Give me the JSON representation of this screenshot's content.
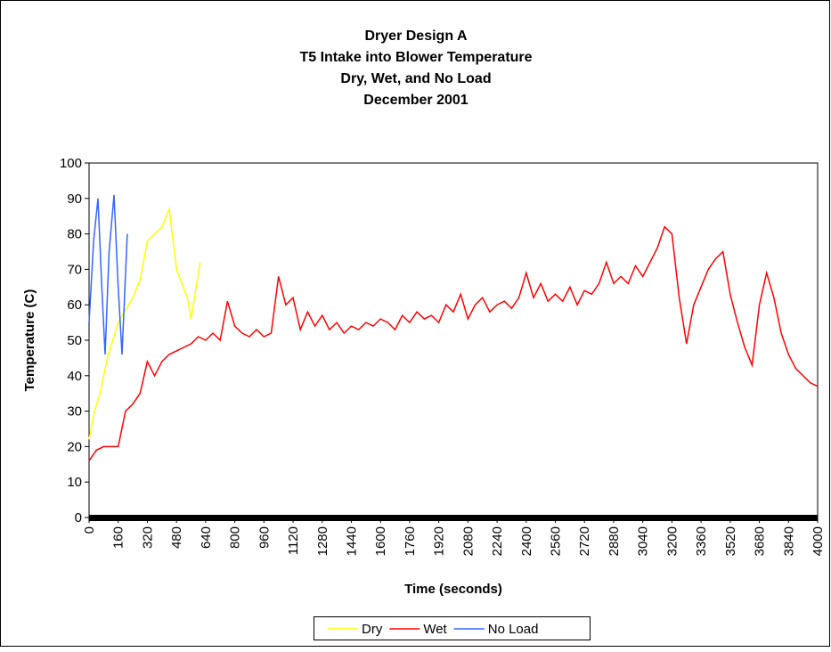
{
  "chart_data": {
    "type": "line",
    "title": [
      "Dryer Design A",
      "T5 Intake into Blower Temperature",
      "Dry, Wet, and No Load",
      "December 2001"
    ],
    "x_label": "Time (seconds)",
    "y_label": "Temperature (C)",
    "xlim": [
      0,
      4000
    ],
    "ylim": [
      0,
      100
    ],
    "xticks": [
      0,
      160,
      320,
      480,
      640,
      800,
      960,
      1120,
      1280,
      1440,
      1600,
      1760,
      1920,
      2080,
      2240,
      2400,
      2560,
      2720,
      2880,
      3040,
      3200,
      3360,
      3520,
      3680,
      3840,
      4000
    ],
    "yticks": [
      0,
      10,
      20,
      30,
      40,
      50,
      60,
      70,
      80,
      90,
      100
    ],
    "legend": "bottom",
    "series": [
      {
        "name": "Dry",
        "color": "#ffff00",
        "x": [
          0,
          30,
          60,
          100,
          160,
          240,
          280,
          320,
          360,
          400,
          440,
          480,
          540,
          560,
          610
        ],
        "values": [
          22,
          30,
          35,
          45,
          55,
          62,
          67,
          78,
          80,
          82,
          87,
          70,
          62,
          56,
          72
        ]
      },
      {
        "name": "Wet",
        "color": "#ff0000",
        "x": [
          0,
          40,
          80,
          120,
          160,
          200,
          240,
          280,
          320,
          360,
          400,
          440,
          480,
          520,
          560,
          600,
          640,
          680,
          720,
          760,
          800,
          840,
          880,
          920,
          960,
          1000,
          1040,
          1080,
          1120,
          1160,
          1200,
          1240,
          1280,
          1320,
          1360,
          1400,
          1440,
          1480,
          1520,
          1560,
          1600,
          1640,
          1680,
          1720,
          1760,
          1800,
          1840,
          1880,
          1920,
          1960,
          2000,
          2040,
          2080,
          2120,
          2160,
          2200,
          2240,
          2280,
          2320,
          2360,
          2400,
          2440,
          2480,
          2520,
          2560,
          2600,
          2640,
          2680,
          2720,
          2760,
          2800,
          2840,
          2880,
          2920,
          2960,
          3000,
          3040,
          3080,
          3120,
          3160,
          3200,
          3240,
          3280,
          3320,
          3360,
          3400,
          3440,
          3480,
          3520,
          3560,
          3600,
          3640,
          3680,
          3720,
          3760,
          3800,
          3840,
          3880,
          3920,
          3960,
          4000
        ],
        "values": [
          16,
          19,
          20,
          20,
          20,
          30,
          32,
          35,
          44,
          40,
          44,
          46,
          47,
          48,
          49,
          51,
          50,
          52,
          50,
          61,
          54,
          52,
          51,
          53,
          51,
          52,
          68,
          60,
          62,
          53,
          58,
          54,
          57,
          53,
          55,
          52,
          54,
          53,
          55,
          54,
          56,
          55,
          53,
          57,
          55,
          58,
          56,
          57,
          55,
          60,
          58,
          63,
          56,
          60,
          62,
          58,
          60,
          61,
          59,
          62,
          69,
          62,
          66,
          61,
          63,
          61,
          65,
          60,
          64,
          63,
          66,
          72,
          66,
          68,
          66,
          71,
          68,
          72,
          76,
          82,
          80,
          62,
          49,
          60,
          65,
          70,
          73,
          75,
          63,
          55,
          48,
          43,
          60,
          69,
          62,
          52,
          46,
          42,
          40,
          38,
          37
        ]
      },
      {
        "name": "No Load",
        "color": "#3366ff",
        "x": [
          0,
          25,
          49,
          70,
          88,
          110,
          137,
          160,
          181,
          210
        ],
        "values": [
          55,
          78,
          90,
          65,
          46,
          75,
          91,
          65,
          46,
          80
        ]
      }
    ]
  }
}
